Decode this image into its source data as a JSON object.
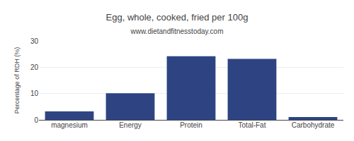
{
  "chart_data": {
    "type": "bar",
    "title": "Egg, whole, cooked, fried per 100g",
    "subtitle": "www.dietandfitnesstoday.com",
    "ylabel": "Percentage of RDH (%)",
    "categories": [
      "magnesium",
      "Energy",
      "Protein",
      "Total-Fat",
      "Carbohydrate"
    ],
    "values": [
      3.2,
      10.1,
      24.2,
      23.2,
      1.1
    ],
    "color": "#2e4482",
    "ylim": [
      0,
      30
    ],
    "yticks": [
      0,
      10,
      20,
      30
    ],
    "grid": true
  }
}
